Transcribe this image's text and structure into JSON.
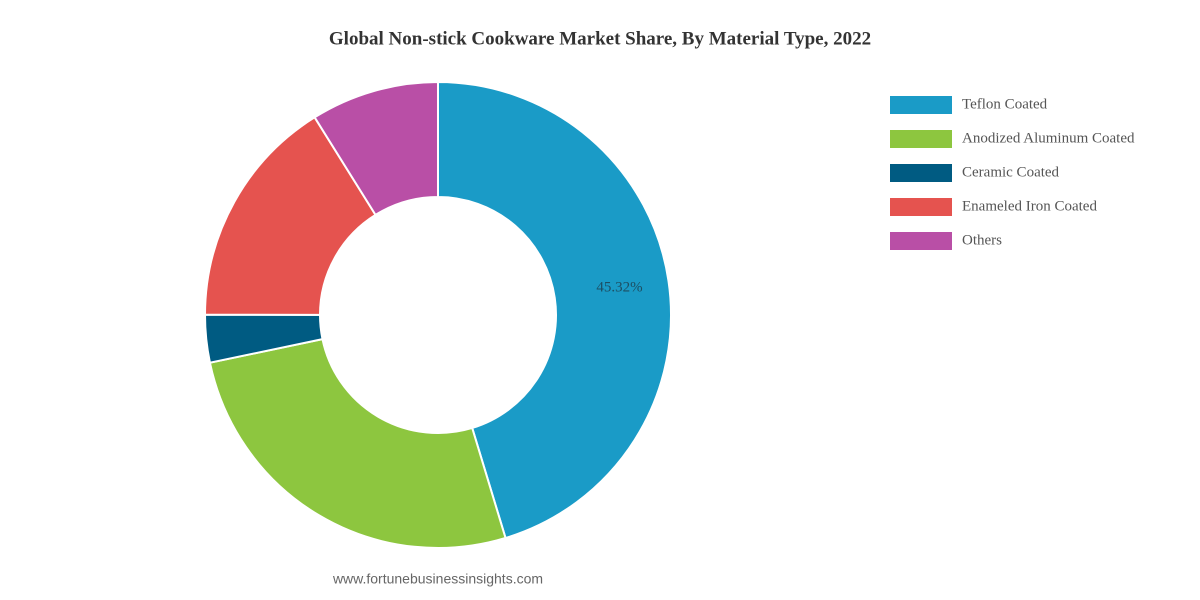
{
  "chart_data": {
    "type": "donut",
    "title": "Global Non-stick Cookware Market Share, By Material Type, 2022",
    "categories": [
      "Teflon Coated",
      "Anodized Aluminum Coated",
      "Ceramic Coated",
      "Enameled Iron Coated",
      "Others"
    ],
    "values": [
      45.32,
      26.4,
      3.3,
      16.1,
      8.88
    ],
    "value_labels": [
      "45.32%",
      null,
      null,
      null,
      null
    ],
    "colors": [
      "#1a9bc7",
      "#8dc63f",
      "#005b82",
      "#e5534f",
      "#b94fa6"
    ],
    "legend": "right",
    "source": "www.fortunebusinessinsights.com"
  }
}
